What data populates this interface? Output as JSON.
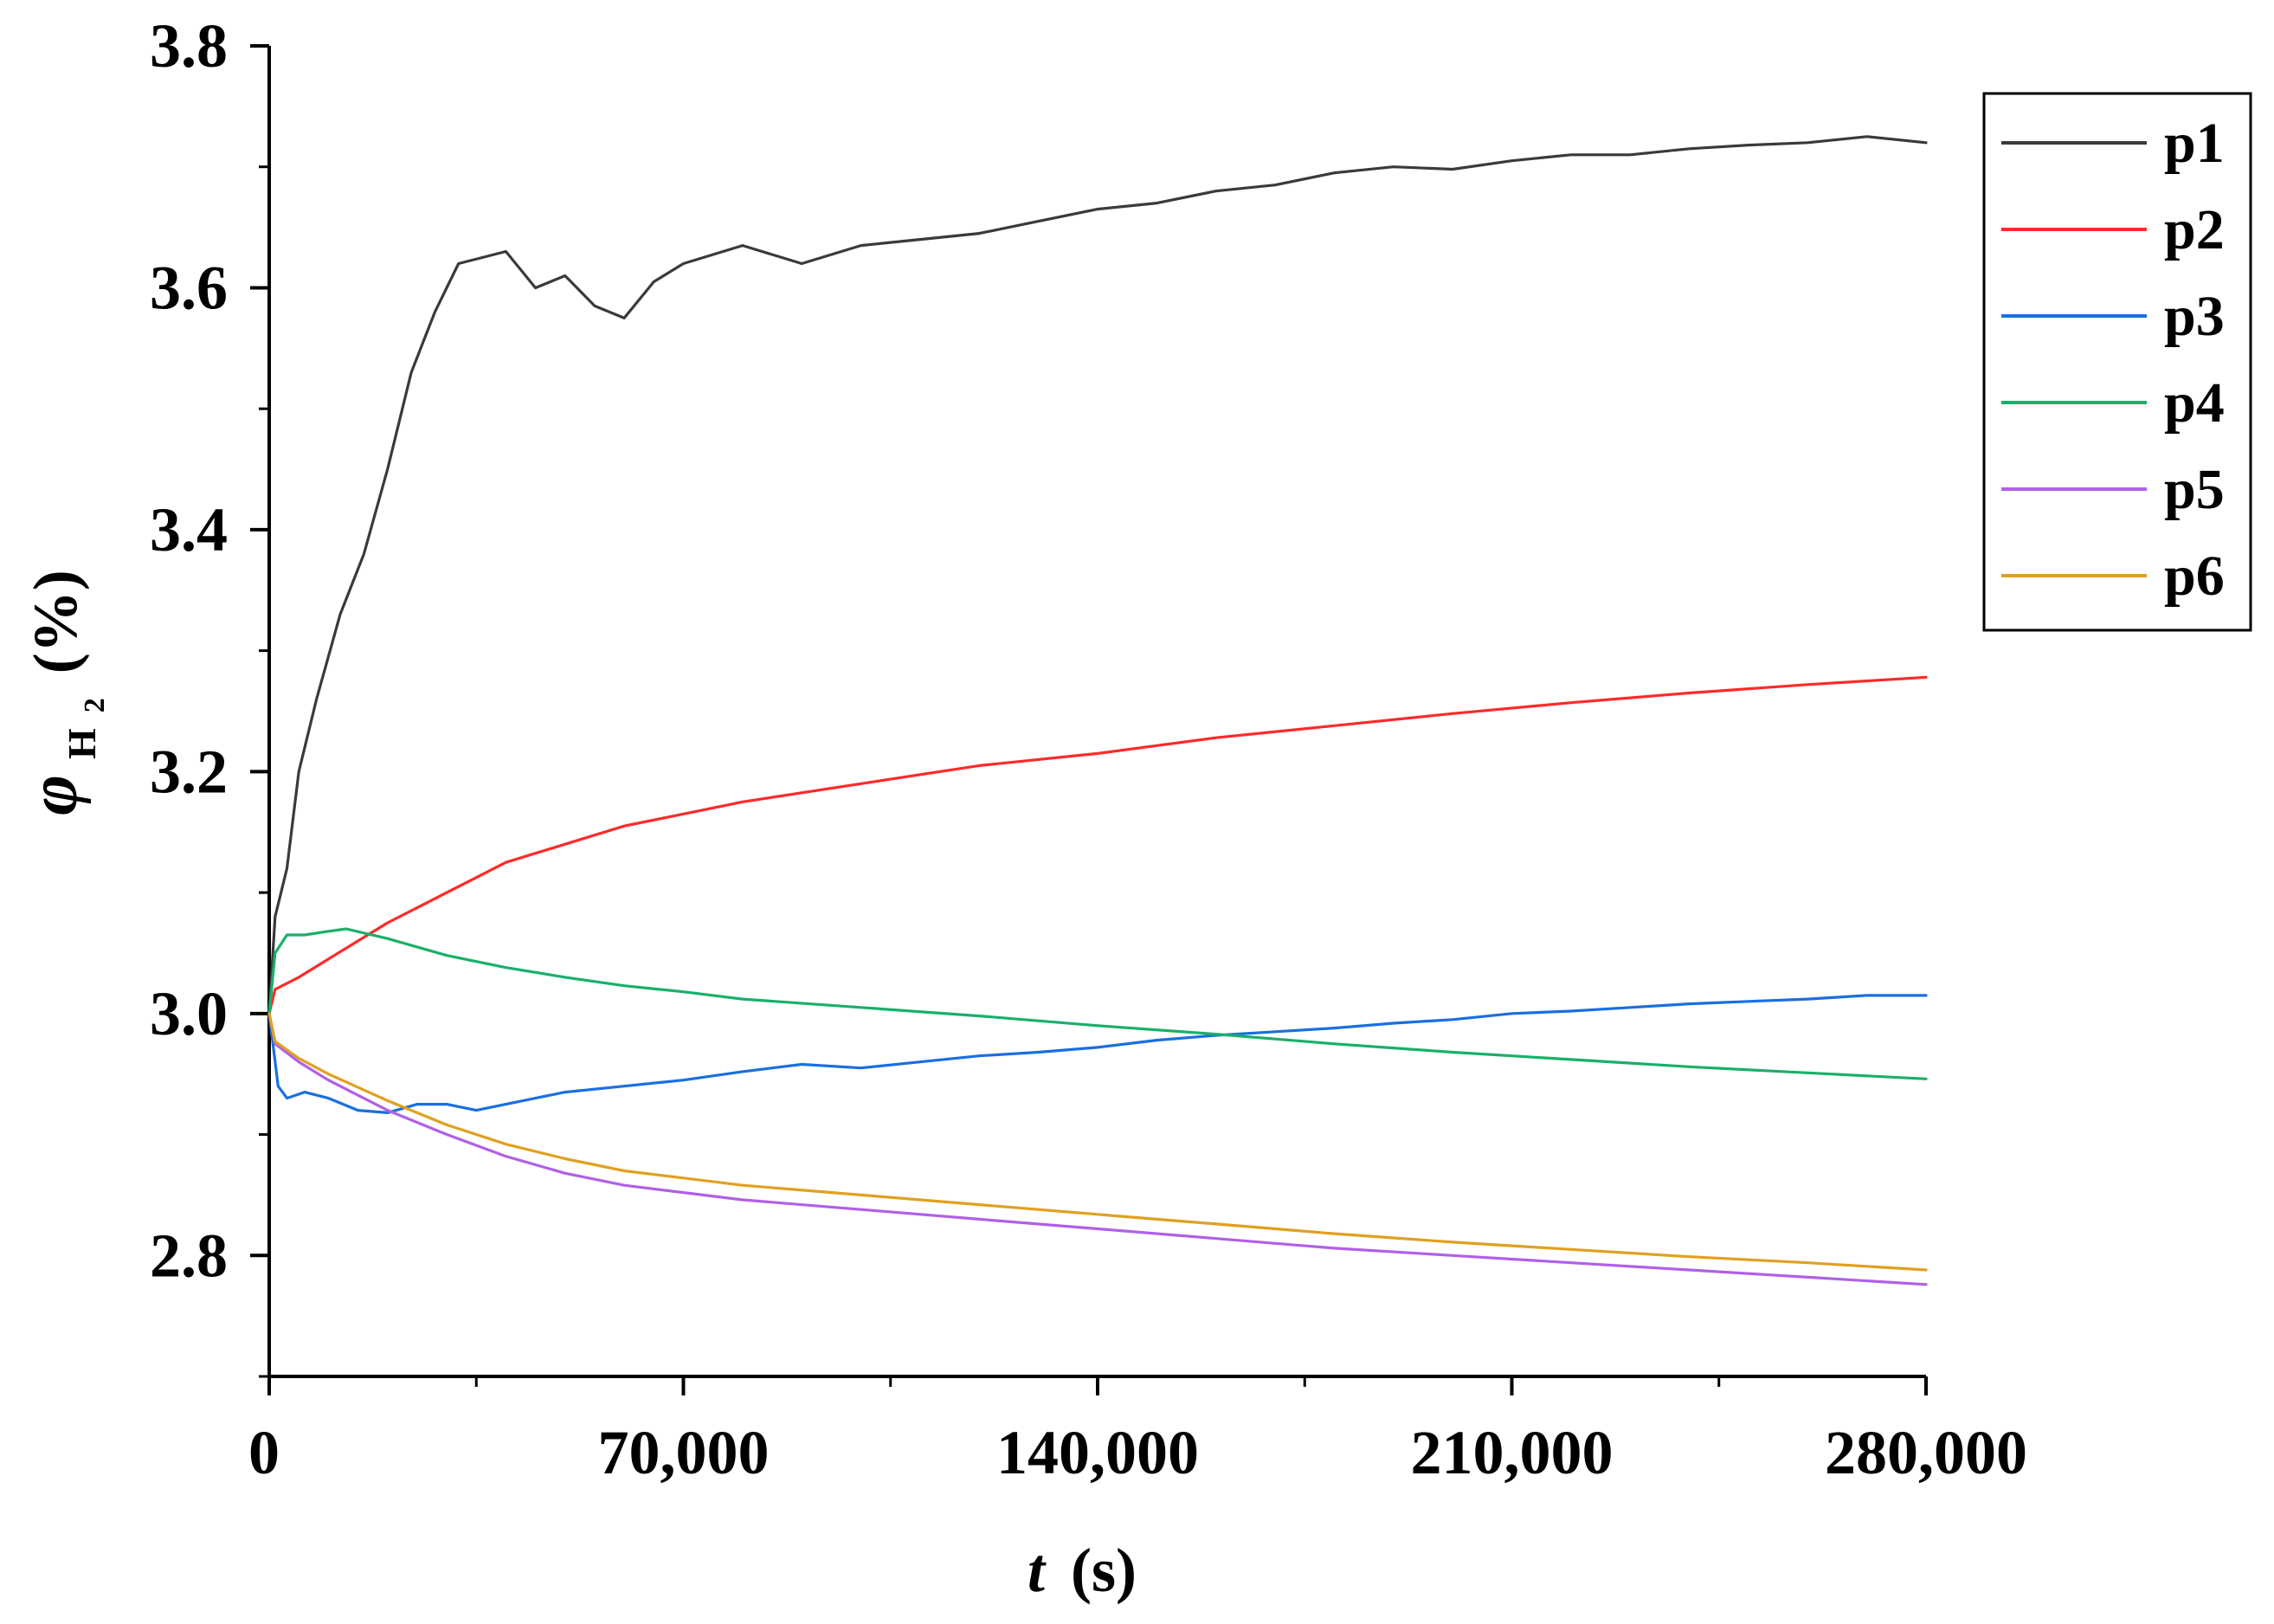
{
  "chart_data": {
    "type": "line",
    "title": "",
    "xlabel": {
      "var": "t",
      "unit": "(s)"
    },
    "ylabel": {
      "var": "φ",
      "sub": "H",
      "subsub": "2",
      "unit": "(%)"
    },
    "xlim": [
      0,
      280000
    ],
    "ylim": [
      2.7,
      3.8
    ],
    "x_ticks": [
      0,
      70000,
      140000,
      210000,
      280000
    ],
    "x_tick_labels": [
      "0",
      "70,000",
      "140,000",
      "210,000",
      "280,000"
    ],
    "y_ticks": [
      2.8,
      3.0,
      3.2,
      3.4,
      3.6,
      3.8
    ],
    "y_tick_labels": [
      "2.8",
      "3.0",
      "3.2",
      "3.4",
      "3.6",
      "3.8"
    ],
    "grid": false,
    "legend_position": "top-right",
    "series": [
      {
        "name": "p1",
        "color": "#3a3a3a",
        "x": [
          0,
          1000,
          3000,
          5000,
          8000,
          12000,
          16000,
          20000,
          24000,
          28000,
          32000,
          36000,
          40000,
          45000,
          50000,
          55000,
          60000,
          65000,
          70000,
          80000,
          90000,
          100000,
          110000,
          120000,
          130000,
          140000,
          150000,
          160000,
          170000,
          180000,
          190000,
          200000,
          210000,
          220000,
          230000,
          240000,
          250000,
          260000,
          270000,
          280000
        ],
        "y": [
          3.0,
          3.08,
          3.12,
          3.2,
          3.26,
          3.33,
          3.38,
          3.45,
          3.53,
          3.58,
          3.62,
          3.625,
          3.63,
          3.6,
          3.61,
          3.585,
          3.575,
          3.605,
          3.62,
          3.635,
          3.62,
          3.635,
          3.64,
          3.645,
          3.655,
          3.665,
          3.67,
          3.68,
          3.685,
          3.695,
          3.7,
          3.698,
          3.705,
          3.71,
          3.71,
          3.715,
          3.718,
          3.72,
          3.725,
          3.72
        ]
      },
      {
        "name": "p2",
        "color": "#ff2a2a",
        "x": [
          0,
          1000,
          5000,
          10000,
          20000,
          30000,
          40000,
          50000,
          60000,
          70000,
          80000,
          100000,
          120000,
          140000,
          160000,
          180000,
          200000,
          220000,
          240000,
          260000,
          280000
        ],
        "y": [
          3.0,
          3.02,
          3.03,
          3.045,
          3.075,
          3.1,
          3.125,
          3.14,
          3.155,
          3.165,
          3.175,
          3.19,
          3.205,
          3.215,
          3.228,
          3.238,
          3.248,
          3.257,
          3.265,
          3.272,
          3.278
        ]
      },
      {
        "name": "p3",
        "color": "#1a6fe0",
        "x": [
          0,
          1500,
          3000,
          6000,
          10000,
          15000,
          20000,
          25000,
          30000,
          35000,
          40000,
          45000,
          50000,
          60000,
          70000,
          80000,
          90000,
          100000,
          110000,
          120000,
          130000,
          140000,
          150000,
          160000,
          170000,
          180000,
          190000,
          200000,
          210000,
          220000,
          230000,
          240000,
          250000,
          260000,
          270000,
          280000
        ],
        "y": [
          3.0,
          2.94,
          2.93,
          2.935,
          2.93,
          2.92,
          2.918,
          2.925,
          2.925,
          2.92,
          2.925,
          2.93,
          2.935,
          2.94,
          2.945,
          2.952,
          2.958,
          2.955,
          2.96,
          2.965,
          2.968,
          2.972,
          2.978,
          2.982,
          2.985,
          2.988,
          2.992,
          2.995,
          3.0,
          3.002,
          3.005,
          3.008,
          3.01,
          3.012,
          3.015,
          3.015
        ]
      },
      {
        "name": "p4",
        "color": "#18b06a",
        "x": [
          0,
          1000,
          3000,
          6000,
          10000,
          13000,
          20000,
          30000,
          40000,
          50000,
          60000,
          70000,
          80000,
          100000,
          120000,
          140000,
          160000,
          180000,
          200000,
          220000,
          240000,
          260000,
          280000
        ],
        "y": [
          3.0,
          3.05,
          3.065,
          3.065,
          3.068,
          3.07,
          3.062,
          3.048,
          3.038,
          3.03,
          3.023,
          3.018,
          3.012,
          3.005,
          2.998,
          2.99,
          2.983,
          2.975,
          2.968,
          2.962,
          2.956,
          2.951,
          2.946
        ]
      },
      {
        "name": "p5",
        "color": "#b060e8",
        "x": [
          0,
          1000,
          5000,
          10000,
          20000,
          30000,
          40000,
          50000,
          60000,
          70000,
          80000,
          100000,
          120000,
          140000,
          160000,
          180000,
          200000,
          220000,
          240000,
          260000,
          280000
        ],
        "y": [
          3.0,
          2.975,
          2.96,
          2.945,
          2.92,
          2.9,
          2.882,
          2.868,
          2.858,
          2.852,
          2.846,
          2.838,
          2.83,
          2.822,
          2.814,
          2.806,
          2.8,
          2.794,
          2.788,
          2.782,
          2.776
        ]
      },
      {
        "name": "p6",
        "color": "#e0a020",
        "x": [
          0,
          1000,
          5000,
          10000,
          20000,
          30000,
          40000,
          50000,
          60000,
          70000,
          80000,
          100000,
          120000,
          140000,
          160000,
          180000,
          200000,
          220000,
          240000,
          260000,
          280000
        ],
        "y": [
          3.0,
          2.977,
          2.963,
          2.95,
          2.928,
          2.908,
          2.892,
          2.88,
          2.87,
          2.864,
          2.858,
          2.85,
          2.842,
          2.834,
          2.826,
          2.818,
          2.811,
          2.805,
          2.799,
          2.794,
          2.788
        ]
      }
    ]
  }
}
